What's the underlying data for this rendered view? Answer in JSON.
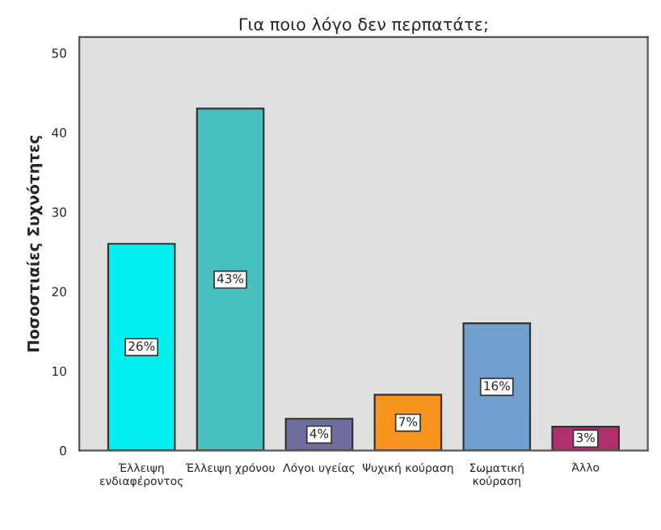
{
  "chart_data": {
    "type": "bar",
    "title": "Για ποιο λόγο δεν περπατάτε;",
    "ylabel": "Ποσοστιαίες Συχνότητες",
    "categories": [
      "Έλλειψη ενδιαφέροντος",
      "Έλλειψη χρόνου",
      "Λόγοι υγείας",
      "Ψυχική κούραση",
      "Σωματική κούραση",
      "Άλλο"
    ],
    "values": [
      26,
      43,
      4,
      7,
      16,
      3
    ],
    "value_labels": [
      "26%",
      "43%",
      "4%",
      "7%",
      "16%",
      "3%"
    ],
    "colors": [
      "#00f0f0",
      "#48c0c0",
      "#6e6e9e",
      "#f7941d",
      "#70a0d0",
      "#b0306e"
    ],
    "ylim": [
      0,
      52
    ],
    "yticks": [
      0,
      10,
      20,
      30,
      40,
      50
    ],
    "grid": false,
    "legend": false
  }
}
